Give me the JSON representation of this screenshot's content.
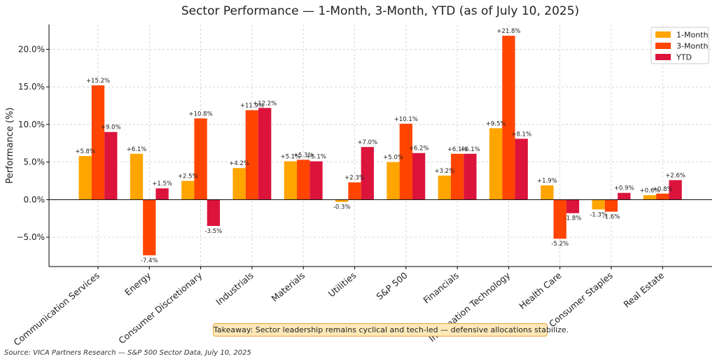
{
  "chart_data": {
    "type": "bar",
    "title": "Sector Performance — 1-Month, 3-Month, YTD (as of July 10, 2025)",
    "xlabel": "",
    "ylabel": "Performance (%)",
    "ylim": [
      -8.9,
      23.3
    ],
    "yticks": [
      -5,
      0,
      5,
      10,
      15,
      20
    ],
    "ytick_labels": [
      "−5.0%",
      "0.0%",
      "5.0%",
      "10.0%",
      "15.0%",
      "20.0%"
    ],
    "categories": [
      "Communication Services",
      "Energy",
      "Consumer Discretionary",
      "Industrials",
      "Materials",
      "Utilities",
      "S&P 500",
      "Financials",
      "Information Technology",
      "Health Care",
      "Consumer Staples",
      "Real Estate"
    ],
    "series": [
      {
        "name": "1-Month",
        "color": "#ffa500",
        "values": [
          5.8,
          6.1,
          2.5,
          4.2,
          5.1,
          -0.3,
          5.0,
          3.2,
          9.5,
          1.9,
          -1.3,
          0.6
        ],
        "labels": [
          "+5.8%",
          "+6.1%",
          "+2.5%",
          "+4.2%",
          "+5.1%",
          "-0.3%",
          "+5.0%",
          "+3.2%",
          "+9.5%",
          "+1.9%",
          "-1.3%",
          "+0.6%"
        ]
      },
      {
        "name": "3-Month",
        "color": "#ff4500",
        "values": [
          15.2,
          -7.4,
          10.8,
          11.9,
          5.3,
          2.3,
          10.1,
          6.1,
          21.8,
          -5.2,
          -1.6,
          0.8
        ],
        "labels": [
          "+15.2%",
          "-7.4%",
          "+10.8%",
          "+11.9%",
          "+5.3%",
          "+2.3%",
          "+10.1%",
          "+6.1%",
          "+21.8%",
          "-5.2%",
          "-1.6%",
          "+0.8%"
        ]
      },
      {
        "name": "YTD",
        "color": "#dc143c",
        "values": [
          9.0,
          1.5,
          -3.5,
          12.2,
          5.1,
          7.0,
          6.2,
          6.1,
          8.1,
          -1.8,
          0.9,
          2.6
        ],
        "labels": [
          "+9.0%",
          "+1.5%",
          "-3.5%",
          "+12.2%",
          "+5.1%",
          "+7.0%",
          "+6.2%",
          "+6.1%",
          "+8.1%",
          "-1.8%",
          "+0.9%",
          "+2.6%"
        ]
      }
    ],
    "grid": true,
    "legend": "top-right"
  },
  "annotation": {
    "takeaway": "Takeaway: Sector leadership remains cyclical and tech-led — defensive allocations stabilize."
  },
  "source": "Source: VICA Partners Research — S&P 500 Sector Data, July 10, 2025"
}
